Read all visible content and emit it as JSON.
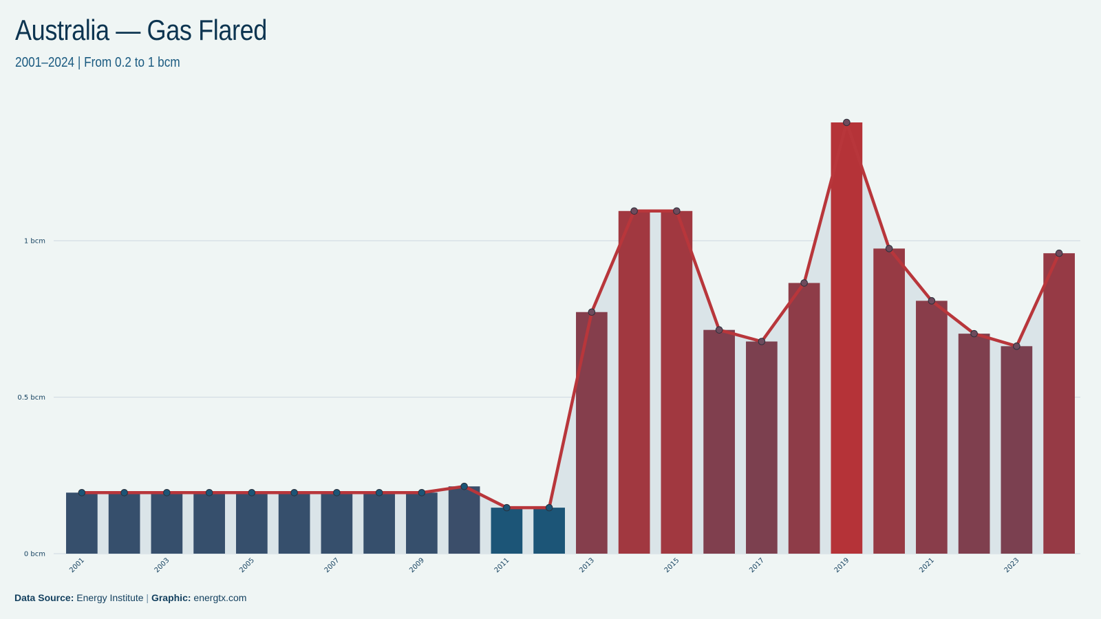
{
  "header": {
    "title": "Australia — Gas Flared",
    "subtitle": "2001–2024 | From 0.2 to 1 bcm"
  },
  "footer": {
    "source_label": "Data Source:",
    "source_value": "Energy Institute",
    "separator": "|",
    "graphic_label": "Graphic:",
    "graphic_value": "energtx.com"
  },
  "colors": {
    "background": "#eff5f4",
    "bar_low": "#1c5577",
    "bar_high": "#b53338",
    "line": "#b8363b",
    "area": "#dae4e8",
    "grid": "#d3dde3",
    "marker_low": "#1c5577",
    "marker_high": "#6e4b5d"
  },
  "chart_data": {
    "type": "bar",
    "title": "Australia — Gas Flared",
    "subtitle": "2001–2024 | From 0.2 to 1 bcm",
    "xlabel": "",
    "ylabel": "",
    "categories": [
      "2001",
      "2002",
      "2003",
      "2004",
      "2005",
      "2006",
      "2007",
      "2008",
      "2009",
      "2010",
      "2011",
      "2012",
      "2013",
      "2014",
      "2015",
      "2016",
      "2017",
      "2018",
      "2019",
      "2020",
      "2021",
      "2022",
      "2023",
      "2024"
    ],
    "values": [
      0.195,
      0.195,
      0.195,
      0.195,
      0.195,
      0.195,
      0.195,
      0.195,
      0.195,
      0.215,
      0.147,
      0.147,
      0.772,
      1.095,
      1.095,
      0.715,
      0.678,
      0.865,
      1.378,
      0.975,
      0.808,
      0.703,
      0.663,
      0.96
    ],
    "x_tick_labels": [
      "2001",
      "2003",
      "2005",
      "2007",
      "2009",
      "2011",
      "2013",
      "2015",
      "2017",
      "2019",
      "2021",
      "2023"
    ],
    "y_ticks": [
      {
        "value": 0,
        "label": "0 bcm"
      },
      {
        "value": 0.5,
        "label": "0.5 bcm"
      },
      {
        "value": 1,
        "label": "1 bcm"
      }
    ],
    "ylim": [
      0,
      1.5
    ],
    "grid": true,
    "overlay": "line with markers and shaded area"
  }
}
